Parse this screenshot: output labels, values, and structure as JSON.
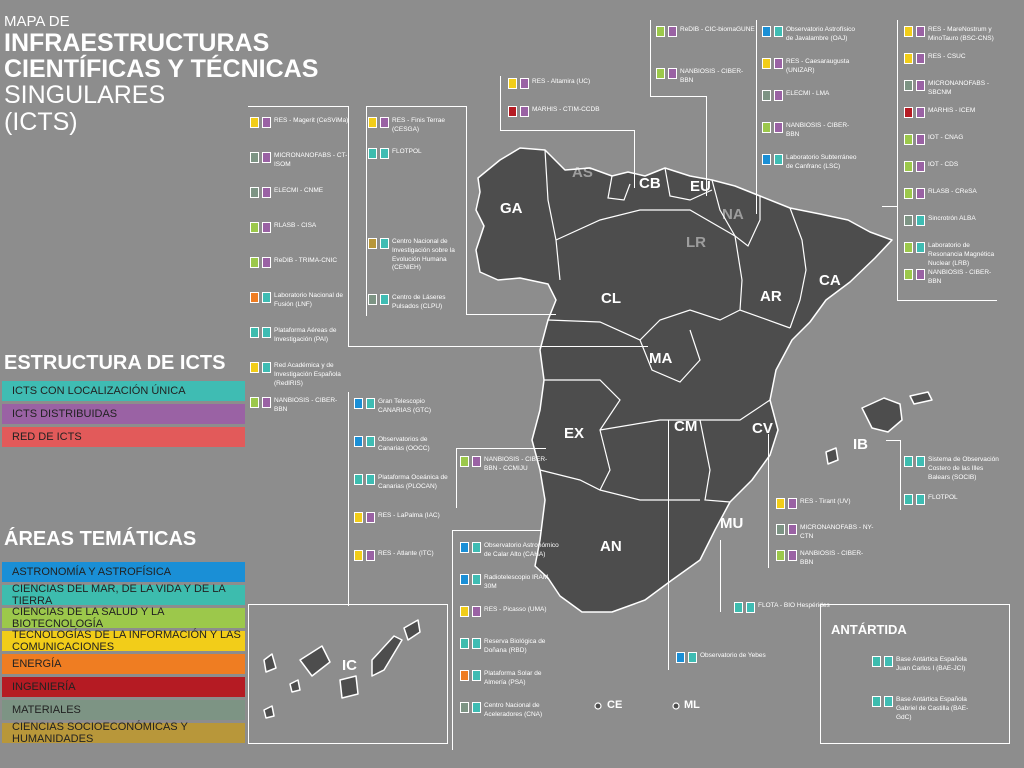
{
  "header": {
    "line1": "MAPA DE",
    "line2": "INFRAESTRUCTURAS",
    "line3": "CIENTÍFICAS Y TÉCNICAS",
    "line4": "SINGULARES",
    "line5": "(ICTS)"
  },
  "estructura": {
    "title": "ESTRUCTURA DE ICTS",
    "items": [
      {
        "label": "ICTS CON LOCALIZACIÓN ÚNICA",
        "color": "#3fbcb3"
      },
      {
        "label": "ICTS DISTRIBUIDAS",
        "color": "#9a62a4"
      },
      {
        "label": "RED DE ICTS",
        "color": "#e25a5a"
      }
    ]
  },
  "areas": {
    "title": "ÁREAS TEMÁTICAS",
    "items": [
      {
        "label": "ASTRONOMÍA Y ASTROFÍSICA",
        "color": "#1a8fd6"
      },
      {
        "label": "CIENCIAS DEL MAR, DE LA VIDA Y DE LA TIERRA",
        "color": "#3dbcae"
      },
      {
        "label": "CIENCIAS DE LA SALUD Y LA BIOTECNOLOGÍA",
        "color": "#9cc84b"
      },
      {
        "label": "TECNOLOGÍAS DE LA INFORMACIÓN Y LAS COMUNICACIONES",
        "color": "#f2cd19"
      },
      {
        "label": "ENERGÍA",
        "color": "#ef7d22"
      },
      {
        "label": "INGENIERÍA",
        "color": "#b51b23"
      },
      {
        "label": "MATERIALES",
        "color": "#7d9484"
      },
      {
        "label": "CIENCIAS SOCIOECONÓMICAS Y HUMANIDADES",
        "color": "#b8973a"
      }
    ]
  },
  "regions": {
    "GA": "GA",
    "AS": "AS",
    "CB": "CB",
    "EU": "EU",
    "NA": "NA",
    "LR": "LR",
    "CL": "CL",
    "AR": "AR",
    "CA": "CA",
    "MA": "MA",
    "EX": "EX",
    "CM": "CM",
    "CV": "CV",
    "IB": "IB",
    "MU": "MU",
    "AN": "AN",
    "IC": "IC",
    "CE": "CE",
    "ML": "ML"
  },
  "antartida": "ANTÁRTIDA",
  "col_left": [
    {
      "label": "RES - Magerit (CeSViMa)",
      "c1": "#f2cd19",
      "c2": "#9a62a4"
    },
    {
      "label": "MICRONANOFABS - CT-ISOM",
      "c1": "#7d9484",
      "c2": "#9a62a4"
    },
    {
      "label": "ELECMI - CNME",
      "c1": "#7d9484",
      "c2": "#9a62a4"
    },
    {
      "label": "RLASB - CISA",
      "c1": "#9cc84b",
      "c2": "#9a62a4"
    },
    {
      "label": "ReDIB - TRIMA-CNIC",
      "c1": "#9cc84b",
      "c2": "#9a62a4"
    },
    {
      "label": "Laboratorio Nacional de Fusión (LNF)",
      "c1": "#ef7d22",
      "c2": "#3fbcb3"
    },
    {
      "label": "Plataforma Aéreas de Investigación (PAI)",
      "c1": "#3dbcae",
      "c2": "#3fbcb3"
    },
    {
      "label": "Red Académica y de Investigación Española (RedIRIS)",
      "c1": "#f2cd19",
      "c2": "#3fbcb3"
    },
    {
      "label": "NANBIOSIS - CIBER-BBN",
      "c1": "#9cc84b",
      "c2": "#9a62a4"
    }
  ],
  "col_center": [
    {
      "label": "RES - Finis Terrae (CESGA)",
      "c1": "#f2cd19",
      "c2": "#9a62a4"
    },
    {
      "label": "FLOTPOL",
      "c1": "#3dbcae",
      "c2": "#3fbcb3"
    }
  ],
  "col_center2": [
    {
      "label": "Centro Nacional de Investigación sobre la Evolución Humana (CENIEH)",
      "c1": "#b8973a",
      "c2": "#3fbcb3"
    },
    {
      "label": "Centro de Láseres Pulsados (CLPU)",
      "c1": "#7d9484",
      "c2": "#3fbcb3"
    }
  ],
  "col_asturias": [
    {
      "label": "RES - Altamira (UC)",
      "c1": "#f2cd19",
      "c2": "#9a62a4"
    },
    {
      "label": "MARHIS - CTIM-CCDB",
      "c1": "#b51b23",
      "c2": "#9a62a4"
    }
  ],
  "col_eu": [
    {
      "label": "ReDIB - CIC-biomaGUNE",
      "c1": "#9cc84b",
      "c2": "#9a62a4"
    },
    {
      "label": "NANBIOSIS - CIBER-BBN",
      "c1": "#9cc84b",
      "c2": "#9a62a4"
    }
  ],
  "col_ar": [
    {
      "label": "Observatorio Astrofísico de Javalambre (OAJ)",
      "c1": "#1a8fd6",
      "c2": "#3fbcb3"
    },
    {
      "label": "RES - Caesaraugusta (UNIZAR)",
      "c1": "#f2cd19",
      "c2": "#9a62a4"
    },
    {
      "label": "ELECMI - LMA",
      "c1": "#7d9484",
      "c2": "#9a62a4"
    },
    {
      "label": "NANBIOSIS - CIBER-BBN",
      "c1": "#9cc84b",
      "c2": "#9a62a4"
    },
    {
      "label": "Laboratorio Subterráneo de Canfranc (LSC)",
      "c1": "#1a8fd6",
      "c2": "#3fbcb3"
    }
  ],
  "col_right": [
    {
      "label": "RES - MareNostrum y MinoTauro (BSC-CNS)",
      "c1": "#f2cd19",
      "c2": "#9a62a4"
    },
    {
      "label": "RES - CSUC",
      "c1": "#f2cd19",
      "c2": "#9a62a4"
    },
    {
      "label": "MICRONANOFABS - SBCNM",
      "c1": "#7d9484",
      "c2": "#9a62a4"
    },
    {
      "label": "MARHIS - ICEM",
      "c1": "#b51b23",
      "c2": "#9a62a4"
    },
    {
      "label": "IOT - CNAG",
      "c1": "#9cc84b",
      "c2": "#9a62a4"
    },
    {
      "label": "IOT - CDS",
      "c1": "#9cc84b",
      "c2": "#9a62a4"
    },
    {
      "label": "RLASB - CReSA",
      "c1": "#9cc84b",
      "c2": "#9a62a4"
    },
    {
      "label": "Sincrotrón ALBA",
      "c1": "#7d9484",
      "c2": "#3fbcb3"
    },
    {
      "label": "Laboratorio de Resonancia Magnética Nuclear (LRB)",
      "c1": "#9cc84b",
      "c2": "#3fbcb3"
    },
    {
      "label": "NANBIOSIS - CIBER-BBN",
      "c1": "#9cc84b",
      "c2": "#9a62a4"
    }
  ],
  "col_ib": [
    {
      "label": "Sistema de Observación Costero de las Illes Balears (SOCIB)",
      "c1": "#3dbcae",
      "c2": "#3fbcb3"
    },
    {
      "label": "FLOTPOL",
      "c1": "#3dbcae",
      "c2": "#3fbcb3"
    }
  ],
  "col_ex": [
    {
      "label": "NANBIOSIS - CIBER-BBN - CCMIJU",
      "c1": "#9cc84b",
      "c2": "#9a62a4"
    }
  ],
  "col_cv": [
    {
      "label": "RES - Tirant (UV)",
      "c1": "#f2cd19",
      "c2": "#9a62a4"
    },
    {
      "label": "MICRONANOFABS - NY-CTN",
      "c1": "#7d9484",
      "c2": "#9a62a4"
    },
    {
      "label": "NANBIOSIS - CIBER-BBN",
      "c1": "#9cc84b",
      "c2": "#9a62a4"
    }
  ],
  "col_mu": [
    {
      "label": "FLOTA - BIO Hespérides",
      "c1": "#3dbcae",
      "c2": "#3fbcb3"
    }
  ],
  "col_ic": [
    {
      "label": "Gran Telescopio CANARIAS (GTC)",
      "c1": "#1a8fd6",
      "c2": "#3fbcb3"
    },
    {
      "label": "Observatorios de Canarias (OOCC)",
      "c1": "#1a8fd6",
      "c2": "#3fbcb3"
    },
    {
      "label": "Plataforma Oceánica de Canarias (PLOCAN)",
      "c1": "#3dbcae",
      "c2": "#3fbcb3"
    },
    {
      "label": "RES - LaPalma (IAC)",
      "c1": "#f2cd19",
      "c2": "#9a62a4"
    },
    {
      "label": "RES - Atlante (ITC)",
      "c1": "#f2cd19",
      "c2": "#9a62a4"
    }
  ],
  "col_an": [
    {
      "label": "Observatorio Astronómico de Calar Alto (CAHA)",
      "c1": "#1a8fd6",
      "c2": "#3fbcb3"
    },
    {
      "label": "Radiotelescopio IRAM 30M",
      "c1": "#1a8fd6",
      "c2": "#3fbcb3"
    },
    {
      "label": "RES - Picasso (UMA)",
      "c1": "#f2cd19",
      "c2": "#9a62a4"
    },
    {
      "label": "Reserva Biológica de Doñana (RBD)",
      "c1": "#3dbcae",
      "c2": "#3fbcb3"
    },
    {
      "label": "Plataforma Solar de Almería (PSA)",
      "c1": "#ef7d22",
      "c2": "#3fbcb3"
    },
    {
      "label": "Centro Nacional de Aceleradores (CNA)",
      "c1": "#7d9484",
      "c2": "#3fbcb3"
    }
  ],
  "col_cm": [
    {
      "label": "Observatorio de Yebes",
      "c1": "#1a8fd6",
      "c2": "#3fbcb3"
    }
  ],
  "col_antartida": [
    {
      "label": "Base Antártica Española Juan Carlos I (BAE-JCI)",
      "c1": "#3dbcae",
      "c2": "#3fbcb3"
    },
    {
      "label": "Base Antártica Española Gabriel de Castilla (BAE-GdC)",
      "c1": "#3dbcae",
      "c2": "#3fbcb3"
    }
  ]
}
